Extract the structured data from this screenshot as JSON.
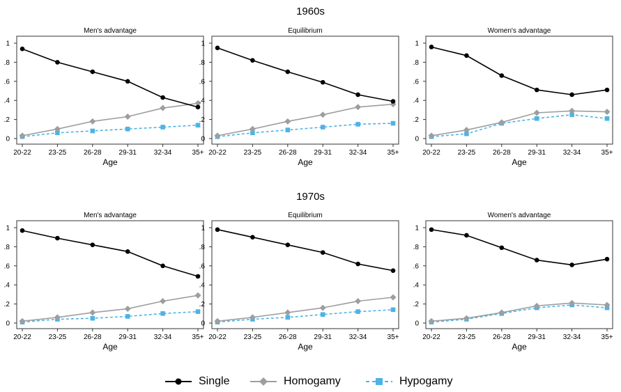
{
  "decades": [
    "1960s",
    "1970s"
  ],
  "legend": [
    {
      "name": "Single",
      "color": "#000000",
      "marker": "circle",
      "dash": "solid"
    },
    {
      "name": "Homogamy",
      "color": "#9e9e9e",
      "marker": "diamond",
      "dash": "solid"
    },
    {
      "name": "Hypogamy",
      "color": "#4db3e6",
      "marker": "square",
      "dash": "dashed"
    }
  ],
  "chart_data": [
    {
      "type": "line",
      "decade": "1960s",
      "title": "Men's advantage",
      "xlabel": "Age",
      "ylabel": "",
      "categories": [
        "20-22",
        "23-25",
        "26-28",
        "29-31",
        "32-34",
        "35+"
      ],
      "yticks": [
        "0",
        ".2",
        ".4",
        ".6",
        ".8",
        "1"
      ],
      "ylim": [
        0,
        1
      ],
      "series": [
        {
          "name": "Single",
          "values": [
            0.94,
            0.8,
            0.7,
            0.6,
            0.43,
            0.33
          ]
        },
        {
          "name": "Homogamy",
          "values": [
            0.03,
            0.1,
            0.18,
            0.23,
            0.32,
            0.37
          ]
        },
        {
          "name": "Hypogamy",
          "values": [
            0.02,
            0.06,
            0.08,
            0.1,
            0.12,
            0.14
          ]
        }
      ]
    },
    {
      "type": "line",
      "decade": "1960s",
      "title": "Equilibrium",
      "xlabel": "Age",
      "ylabel": "",
      "categories": [
        "20-22",
        "23-25",
        "26-28",
        "29-31",
        "32-34",
        "35+"
      ],
      "yticks": [
        "0",
        ".2",
        ".4",
        ".6",
        ".8",
        "1"
      ],
      "ylim": [
        0,
        1
      ],
      "series": [
        {
          "name": "Single",
          "values": [
            0.95,
            0.82,
            0.7,
            0.59,
            0.46,
            0.39
          ]
        },
        {
          "name": "Homogamy",
          "values": [
            0.03,
            0.1,
            0.18,
            0.25,
            0.33,
            0.36
          ]
        },
        {
          "name": "Hypogamy",
          "values": [
            0.02,
            0.06,
            0.09,
            0.12,
            0.15,
            0.16
          ]
        }
      ]
    },
    {
      "type": "line",
      "decade": "1960s",
      "title": "Women's advantage",
      "xlabel": "Age",
      "ylabel": "",
      "categories": [
        "20-22",
        "23-25",
        "26-28",
        "29-31",
        "32-34",
        "35+"
      ],
      "yticks": [
        "0",
        ".2",
        ".4",
        ".6",
        ".8",
        "1"
      ],
      "ylim": [
        0,
        1
      ],
      "series": [
        {
          "name": "Single",
          "values": [
            0.96,
            0.87,
            0.66,
            0.51,
            0.46,
            0.51
          ]
        },
        {
          "name": "Homogamy",
          "values": [
            0.03,
            0.09,
            0.17,
            0.27,
            0.29,
            0.28
          ]
        },
        {
          "name": "Hypogamy",
          "values": [
            0.02,
            0.05,
            0.16,
            0.21,
            0.25,
            0.21
          ]
        }
      ]
    },
    {
      "type": "line",
      "decade": "1970s",
      "title": "Men's advantage",
      "xlabel": "Age",
      "ylabel": "",
      "categories": [
        "20-22",
        "23-25",
        "26-28",
        "29-31",
        "32-34",
        "35+"
      ],
      "yticks": [
        "0",
        ".2",
        ".4",
        ".6",
        ".8",
        "1"
      ],
      "ylim": [
        0,
        1
      ],
      "series": [
        {
          "name": "Single",
          "values": [
            0.97,
            0.89,
            0.82,
            0.75,
            0.6,
            0.49
          ]
        },
        {
          "name": "Homogamy",
          "values": [
            0.02,
            0.06,
            0.11,
            0.15,
            0.23,
            0.29
          ]
        },
        {
          "name": "Hypogamy",
          "values": [
            0.01,
            0.04,
            0.05,
            0.07,
            0.1,
            0.12
          ]
        }
      ]
    },
    {
      "type": "line",
      "decade": "1970s",
      "title": "Equilibrium",
      "xlabel": "Age",
      "ylabel": "",
      "categories": [
        "20-22",
        "23-25",
        "26-28",
        "29-31",
        "32-34",
        "35+"
      ],
      "yticks": [
        "0",
        ".2",
        ".4",
        ".6",
        ".8",
        "1"
      ],
      "ylim": [
        0,
        1
      ],
      "series": [
        {
          "name": "Single",
          "values": [
            0.98,
            0.9,
            0.82,
            0.74,
            0.62,
            0.55
          ]
        },
        {
          "name": "Homogamy",
          "values": [
            0.02,
            0.06,
            0.11,
            0.16,
            0.23,
            0.27
          ]
        },
        {
          "name": "Hypogamy",
          "values": [
            0.01,
            0.04,
            0.06,
            0.09,
            0.12,
            0.14
          ]
        }
      ]
    },
    {
      "type": "line",
      "decade": "1970s",
      "title": "Women's advantage",
      "xlabel": "Age",
      "ylabel": "",
      "categories": [
        "20-22",
        "23-25",
        "26-28",
        "29-31",
        "32-34",
        "35+"
      ],
      "yticks": [
        "0",
        ".2",
        ".4",
        ".6",
        ".8",
        "1"
      ],
      "ylim": [
        0,
        1
      ],
      "series": [
        {
          "name": "Single",
          "values": [
            0.98,
            0.92,
            0.79,
            0.66,
            0.61,
            0.67
          ]
        },
        {
          "name": "Homogamy",
          "values": [
            0.02,
            0.05,
            0.11,
            0.18,
            0.21,
            0.19
          ]
        },
        {
          "name": "Hypogamy",
          "values": [
            0.01,
            0.04,
            0.1,
            0.16,
            0.19,
            0.16
          ]
        }
      ]
    }
  ]
}
